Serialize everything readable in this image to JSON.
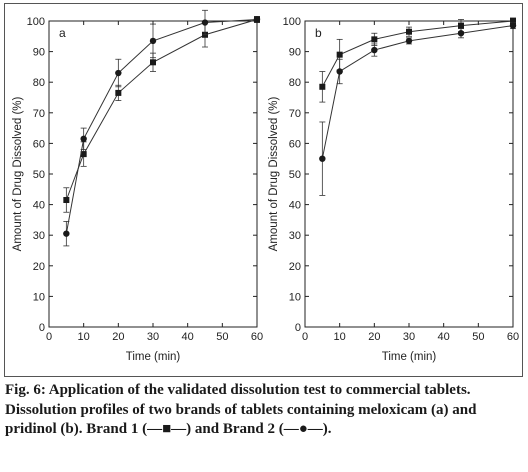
{
  "chart_data": [
    {
      "type": "line",
      "panel_label": "a",
      "x": [
        5,
        10,
        20,
        30,
        45,
        60
      ],
      "xlabel": "Time (min)",
      "ylabel": "Amount of Drug Dissolved (%)",
      "xlim": [
        0,
        60
      ],
      "ylim": [
        0,
        100
      ],
      "xticks": [
        0,
        10,
        20,
        30,
        40,
        50,
        60
      ],
      "yticks": [
        0,
        10,
        20,
        30,
        40,
        50,
        60,
        70,
        80,
        90,
        100
      ],
      "series": [
        {
          "marker": "square",
          "values": [
            41.5,
            56.5,
            76.5,
            86.5,
            95.5,
            100.5
          ],
          "errors": [
            4,
            4,
            2.5,
            3,
            4,
            1
          ]
        },
        {
          "marker": "circle",
          "values": [
            30.5,
            61.5,
            83.0,
            93.5,
            99.5,
            100.5
          ],
          "errors": [
            4,
            3.5,
            4.5,
            5.5,
            4,
            1
          ]
        }
      ]
    },
    {
      "type": "line",
      "panel_label": "b",
      "x": [
        5,
        10,
        20,
        30,
        45,
        60
      ],
      "xlabel": "Time (min)",
      "ylabel": "Amount of Drug Dissolved (%)",
      "xlim": [
        0,
        60
      ],
      "ylim": [
        0,
        100
      ],
      "xticks": [
        0,
        10,
        20,
        30,
        40,
        50,
        60
      ],
      "yticks": [
        0,
        10,
        20,
        30,
        40,
        50,
        60,
        70,
        80,
        90,
        100
      ],
      "series": [
        {
          "marker": "square",
          "values": [
            78.5,
            89.0,
            94.0,
            96.5,
            98.5,
            100.0
          ],
          "errors": [
            5,
            5,
            2,
            1.5,
            2,
            1
          ]
        },
        {
          "marker": "circle",
          "values": [
            55.0,
            83.5,
            90.5,
            93.5,
            96.0,
            98.5
          ],
          "errors": [
            12,
            4,
            2,
            1,
            1.5,
            1
          ]
        }
      ]
    }
  ],
  "caption": {
    "title": "Fig. 6: Application of the validated dissolution test to commercial tablets.",
    "body": "Dissolution profiles of two brands of tablets containing meloxicam (a) and pridinol (b). Brand 1 (—■—) and Brand 2 (—●—)."
  },
  "colors": {
    "line": "#333333",
    "axis": "#222222",
    "marker": "#1a1a1a"
  }
}
